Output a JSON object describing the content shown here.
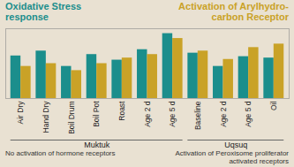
{
  "chart_data": {
    "type": "bar",
    "categories": [
      "Air Dry",
      "Hand Dry",
      "Boil Drum",
      "Boil Pot",
      "Roast",
      "Age 2 d",
      "Age 5 d",
      "Baseline",
      "Age 2 d",
      "Age 5 d",
      "Oil"
    ],
    "series": [
      {
        "name": "Oxidative Stress response",
        "color": "#1b8e8c",
        "values": [
          61,
          68,
          46,
          63,
          55,
          70,
          93,
          65,
          46,
          60,
          58
        ]
      },
      {
        "name": "Activation of Arylhydro-carbon Receptor",
        "color": "#c9a227",
        "values": [
          46,
          50,
          40,
          50,
          58,
          63,
          86,
          68,
          56,
          73,
          78
        ]
      }
    ],
    "groups": [
      {
        "label": "Muktuk",
        "from": 0,
        "to": 6
      },
      {
        "label": "Uqsuq",
        "from": 7,
        "to": 10
      }
    ],
    "annotations": [
      "No activation of hormone receptors",
      "Activation of Peroxisome proliferator activated receptors"
    ],
    "ylim": [
      0,
      100
    ],
    "yticks": [],
    "tick_labels": "x",
    "grid": false
  }
}
